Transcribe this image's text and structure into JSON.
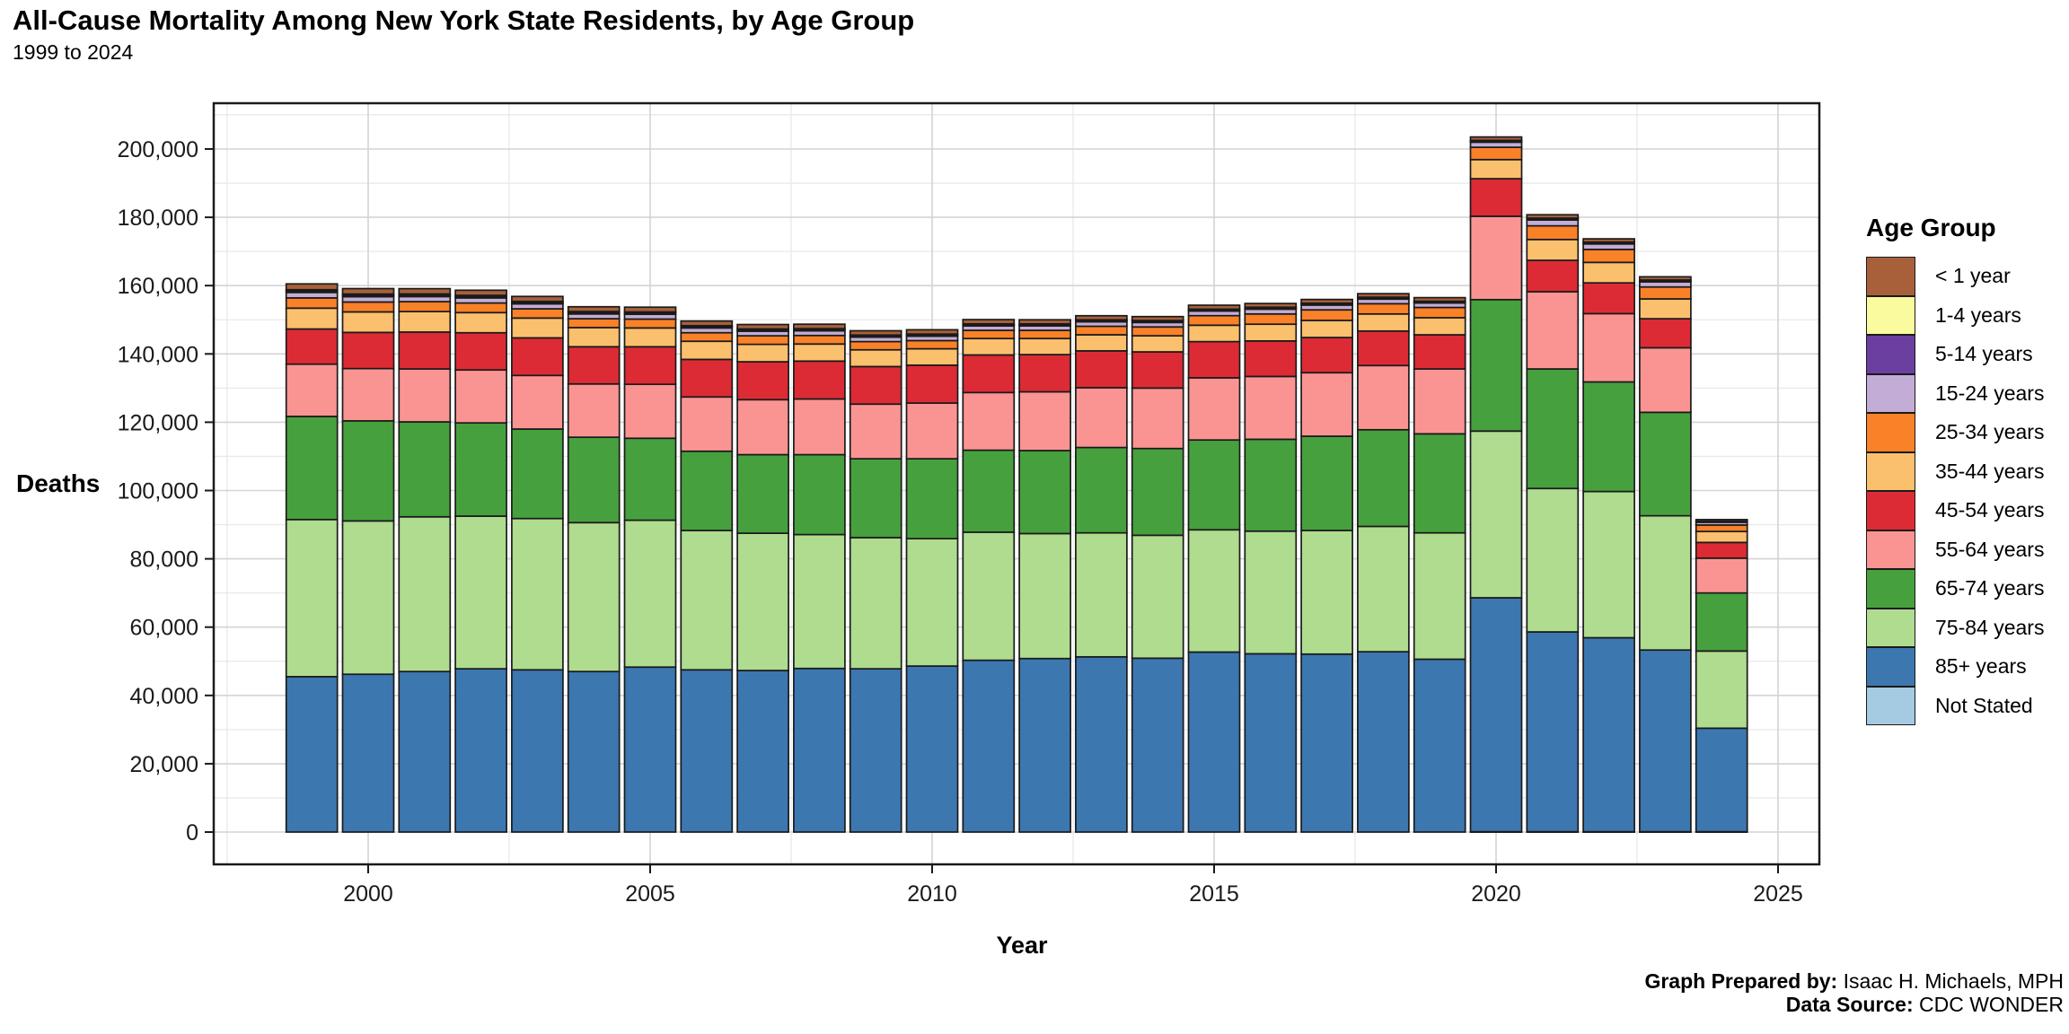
{
  "header": {
    "title": "All-Cause Mortality Among New York State Residents, by Age Group",
    "subtitle": "1999 to 2024"
  },
  "axes": {
    "y_label": "Deaths",
    "x_label": "Year"
  },
  "legend": {
    "title": "Age Group",
    "position": "right"
  },
  "footer": {
    "prepared_label": "Graph Prepared by:",
    "prepared_value": " Isaac H. Michaels, MPH",
    "source_label": "Data Source:",
    "source_value": " CDC WONDER"
  },
  "colors": {
    "panel_border": "#1a1a1a",
    "bar_stroke": "#1a1a1a",
    "grid_major": "#d4d4d4",
    "grid_minor": "#e9e9e9",
    "background": "#ffffff"
  },
  "chart_data": {
    "type": "bar",
    "stacked": true,
    "title": "All-Cause Mortality Among New York State Residents, by Age Group",
    "subtitle": "1999 to 2024",
    "xlabel": "Year",
    "ylabel": "Deaths",
    "x": [
      1999,
      2000,
      2001,
      2002,
      2003,
      2004,
      2005,
      2006,
      2007,
      2008,
      2009,
      2010,
      2011,
      2012,
      2013,
      2014,
      2015,
      2016,
      2017,
      2018,
      2019,
      2020,
      2021,
      2022,
      2023,
      2024
    ],
    "xticks": [
      2000,
      2005,
      2010,
      2015,
      2020,
      2025
    ],
    "yticks": [
      0,
      20000,
      40000,
      60000,
      80000,
      100000,
      120000,
      140000,
      160000,
      180000,
      200000
    ],
    "ylim": [
      0,
      213400
    ],
    "grid": true,
    "legend_position": "right",
    "stacking_note": "series listed top-of-stack first (legend order); bars stack bottom-to-top in reverse of this list",
    "series": [
      {
        "name": "< 1 year",
        "color": "#A8603A",
        "values": [
          1700,
          1600,
          1550,
          1500,
          1450,
          1400,
          1400,
          1350,
          1300,
          1300,
          1250,
          1250,
          1250,
          1200,
          1200,
          1150,
          1150,
          1100,
          1100,
          1050,
          1050,
          1000,
          1000,
          950,
          950,
          500
        ]
      },
      {
        "name": "1-4 years",
        "color": "#FAFA9E",
        "values": [
          350,
          340,
          330,
          330,
          320,
          310,
          300,
          300,
          290,
          290,
          280,
          280,
          270,
          270,
          260,
          260,
          250,
          250,
          250,
          240,
          240,
          240,
          250,
          250,
          240,
          130
        ]
      },
      {
        "name": "5-14 years",
        "color": "#6A3FA0",
        "values": [
          450,
          440,
          430,
          420,
          410,
          400,
          390,
          380,
          370,
          360,
          350,
          340,
          330,
          330,
          320,
          320,
          310,
          310,
          300,
          300,
          290,
          280,
          300,
          300,
          290,
          160
        ]
      },
      {
        "name": "15-24 years",
        "color": "#C3ADD6",
        "values": [
          1600,
          1550,
          1500,
          1500,
          1450,
          1400,
          1400,
          1400,
          1350,
          1350,
          1300,
          1300,
          1300,
          1300,
          1300,
          1300,
          1350,
          1400,
          1400,
          1350,
          1300,
          1500,
          1700,
          1600,
          1500,
          800
        ]
      },
      {
        "name": "25-34 years",
        "color": "#F98128",
        "values": [
          3000,
          2900,
          2900,
          2800,
          2700,
          2600,
          2600,
          2500,
          2500,
          2500,
          2400,
          2400,
          2400,
          2400,
          2500,
          2600,
          2800,
          3000,
          3100,
          3000,
          3000,
          3600,
          4000,
          3800,
          3500,
          1900
        ]
      },
      {
        "name": "35-44 years",
        "color": "#FBC06E",
        "values": [
          6100,
          6000,
          6000,
          5900,
          5800,
          5600,
          5500,
          5300,
          5100,
          5000,
          4900,
          4800,
          4800,
          4700,
          4700,
          4700,
          4800,
          4900,
          5000,
          5000,
          5000,
          5600,
          6100,
          6000,
          5800,
          3200
        ]
      },
      {
        "name": "45-54 years",
        "color": "#DC2B35",
        "values": [
          10300,
          10600,
          10800,
          10900,
          11000,
          10900,
          11000,
          11000,
          11100,
          11100,
          11000,
          11100,
          11000,
          10900,
          10800,
          10600,
          10600,
          10400,
          10300,
          10100,
          10000,
          11000,
          9200,
          9000,
          8500,
          4600
        ]
      },
      {
        "name": "55-64 years",
        "color": "#FA9493",
        "values": [
          15300,
          15300,
          15500,
          15500,
          15700,
          15600,
          15800,
          15900,
          16100,
          16300,
          16000,
          16300,
          16900,
          17200,
          17500,
          17700,
          18200,
          18400,
          18600,
          18800,
          19000,
          24400,
          22600,
          20000,
          18900,
          10200
        ]
      },
      {
        "name": "65-74 years",
        "color": "#47A03E",
        "values": [
          30200,
          29300,
          27800,
          27300,
          26200,
          25000,
          24000,
          23200,
          23000,
          23400,
          23100,
          23400,
          24000,
          24300,
          25000,
          25400,
          26300,
          26900,
          27600,
          28300,
          29000,
          38500,
          35000,
          32100,
          30300,
          17000
        ]
      },
      {
        "name": "75-84 years",
        "color": "#AFDC8F",
        "values": [
          46000,
          44900,
          45300,
          44700,
          44300,
          43600,
          43000,
          40800,
          40200,
          39200,
          38400,
          37300,
          37500,
          36600,
          36300,
          36000,
          35800,
          35900,
          36200,
          36700,
          37000,
          48800,
          42000,
          42800,
          39300,
          22600
        ]
      },
      {
        "name": "85+ years",
        "color": "#3C77B0",
        "values": [
          45500,
          46200,
          47000,
          47800,
          47500,
          47000,
          48300,
          47500,
          47300,
          47900,
          47800,
          48600,
          50300,
          50800,
          51300,
          50900,
          52700,
          52200,
          52100,
          52800,
          50600,
          68500,
          58500,
          56800,
          53200,
          30300
        ]
      },
      {
        "name": "Not Stated",
        "color": "#A5CBE2",
        "values": [
          0,
          0,
          0,
          0,
          0,
          0,
          0,
          0,
          0,
          0,
          0,
          0,
          0,
          0,
          0,
          0,
          0,
          0,
          0,
          0,
          0,
          100,
          100,
          100,
          100,
          100
        ]
      }
    ]
  }
}
